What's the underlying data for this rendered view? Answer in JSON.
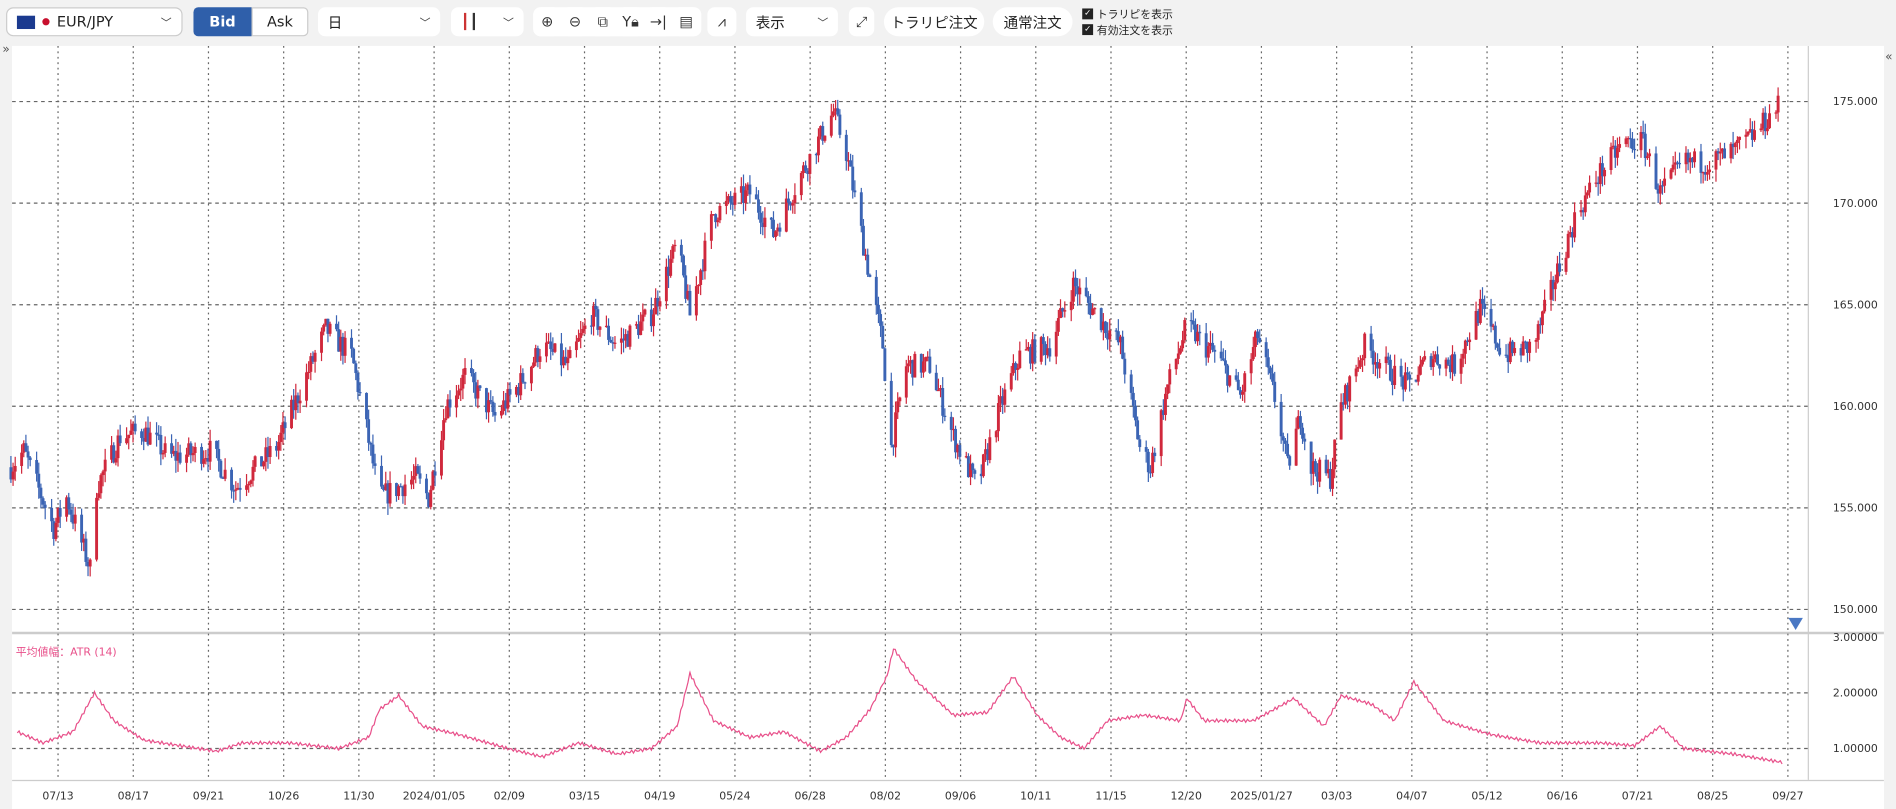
{
  "toolbar": {
    "symbol": "EUR/JPY",
    "bid_label": "Bid",
    "ask_label": "Ask",
    "period": "日",
    "display_label": "表示",
    "trarip_order": "トラリピ注文",
    "normal_order": "通常注文",
    "show_trarip": "トラリピを表示",
    "show_active_orders": "有効注文を表示",
    "show_trarip_checked": true,
    "show_active_orders_checked": true,
    "icons": [
      "zoom-in-icon",
      "zoom-out-icon",
      "fit-icon",
      "y-lock-icon",
      "jump-end-icon",
      "document-icon"
    ]
  },
  "colors": {
    "up": "#d0283c",
    "down": "#3b64b4",
    "atr": "#e8508a",
    "bid": "#2f5faa"
  },
  "chart_data": [
    {
      "type": "candlestick",
      "symbol": "EUR/JPY",
      "timeframe": "日",
      "y_ticks": [
        "150.000",
        "155.000",
        "160.000",
        "165.000",
        "170.000",
        "175.000"
      ],
      "ylim": [
        149.3,
        177.8
      ],
      "x_ticks": [
        "07/13",
        "08/17",
        "09/21",
        "10/26",
        "11/30",
        "2024/01/05",
        "02/09",
        "03/15",
        "04/19",
        "05/24",
        "06/28",
        "08/02",
        "09/06",
        "10/11",
        "11/15",
        "12/20",
        "2025/01/27",
        "03/03",
        "04/07",
        "05/12",
        "06/16",
        "07/21",
        "08/25",
        "09/27"
      ],
      "approx_close": [
        [
          "2023-06-21",
          157
        ],
        [
          "2023-06-27",
          157.8
        ],
        [
          "2023-07-11",
          154
        ],
        [
          "2023-07-17",
          155.5
        ],
        [
          "2023-07-28",
          152
        ],
        [
          "2023-07-31",
          156
        ],
        [
          "2023-08-11",
          158.5
        ],
        [
          "2023-08-22",
          158.8
        ],
        [
          "2023-09-03",
          157.5
        ],
        [
          "2023-09-22",
          157.8
        ],
        [
          "2023-10-04",
          156
        ],
        [
          "2023-10-23",
          158
        ],
        [
          "2023-11-04",
          161
        ],
        [
          "2023-11-15",
          163.8
        ],
        [
          "2023-11-27",
          162.5
        ],
        [
          "2023-12-02",
          160
        ],
        [
          "2023-12-10",
          155.5
        ],
        [
          "2023-12-19",
          156
        ],
        [
          "2023-12-27",
          156.5
        ],
        [
          "2024-01-02",
          155.5
        ],
        [
          "2024-01-10",
          160
        ],
        [
          "2024-01-19",
          161.5
        ],
        [
          "2024-02-02",
          159.5
        ],
        [
          "2024-02-13",
          161
        ],
        [
          "2024-02-24",
          163
        ],
        [
          "2024-03-07",
          162
        ],
        [
          "2024-03-18",
          164.5
        ],
        [
          "2024-03-30",
          163
        ],
        [
          "2024-04-15",
          164.5
        ],
        [
          "2024-04-27",
          168
        ],
        [
          "2024-05-03",
          164.5
        ],
        [
          "2024-05-14",
          169.5
        ],
        [
          "2024-05-31",
          170.5
        ],
        [
          "2024-06-11",
          168.5
        ],
        [
          "2024-06-22",
          171
        ],
        [
          "2024-07-09",
          174.5
        ],
        [
          "2024-07-15",
          172.5
        ],
        [
          "2024-07-23",
          168
        ],
        [
          "2024-08-01",
          163
        ],
        [
          "2024-08-05",
          158
        ],
        [
          "2024-08-12",
          162
        ],
        [
          "2024-08-23",
          162
        ],
        [
          "2024-09-03",
          158.5
        ],
        [
          "2024-09-14",
          156
        ],
        [
          "2024-09-25",
          160
        ],
        [
          "2024-10-04",
          162.5
        ],
        [
          "2024-10-18",
          163
        ],
        [
          "2024-10-29",
          166
        ],
        [
          "2024-11-09",
          164.5
        ],
        [
          "2024-11-20",
          163
        ],
        [
          "2024-11-29",
          158
        ],
        [
          "2024-12-04",
          157
        ],
        [
          "2024-12-12",
          161
        ],
        [
          "2024-12-21",
          164
        ],
        [
          "2024-12-29",
          163
        ],
        [
          "2025-01-04",
          162.5
        ],
        [
          "2025-01-15",
          160.5
        ],
        [
          "2025-01-23",
          163.5
        ],
        [
          "2025-02-01",
          160
        ],
        [
          "2025-02-06",
          157
        ],
        [
          "2025-02-12",
          159.5
        ],
        [
          "2025-02-17",
          157
        ],
        [
          "2025-02-26",
          156.5
        ],
        [
          "2025-03-03",
          160
        ],
        [
          "2025-03-14",
          163
        ],
        [
          "2025-03-23",
          162
        ],
        [
          "2025-04-03",
          161
        ],
        [
          "2025-04-14",
          162.5
        ],
        [
          "2025-04-25",
          162
        ],
        [
          "2025-05-07",
          164.8
        ],
        [
          "2025-05-18",
          162.5
        ],
        [
          "2025-06-01",
          163
        ],
        [
          "2025-06-10",
          166
        ],
        [
          "2025-06-21",
          169.5
        ],
        [
          "2025-07-02",
          171.5
        ],
        [
          "2025-07-13",
          173
        ],
        [
          "2025-07-22",
          173
        ],
        [
          "2025-07-30",
          170.5
        ],
        [
          "2025-08-10",
          172
        ],
        [
          "2025-08-22",
          172
        ],
        [
          "2025-09-02",
          172.5
        ],
        [
          "2025-09-13",
          173.5
        ],
        [
          "2025-09-23",
          174.8
        ]
      ]
    },
    {
      "type": "line",
      "title": "平均値幅：ATR (14)",
      "y_ticks": [
        "1.00000",
        "2.00000",
        "3.00000"
      ],
      "ylim": [
        0.45,
        3.0
      ],
      "values": [
        [
          "2023-06-24",
          1.3
        ],
        [
          "2023-07-06",
          1.1
        ],
        [
          "2023-07-20",
          1.3
        ],
        [
          "2023-07-30",
          2.0
        ],
        [
          "2023-08-08",
          1.5
        ],
        [
          "2023-08-22",
          1.15
        ],
        [
          "2023-09-08",
          1.05
        ],
        [
          "2023-09-25",
          0.95
        ],
        [
          "2023-10-07",
          1.1
        ],
        [
          "2023-10-29",
          1.1
        ],
        [
          "2023-11-21",
          1.0
        ],
        [
          "2023-12-05",
          1.2
        ],
        [
          "2023-12-10",
          1.7
        ],
        [
          "2023-12-19",
          1.95
        ],
        [
          "2023-12-30",
          1.4
        ],
        [
          "2024-01-16",
          1.25
        ],
        [
          "2024-02-08",
          1.0
        ],
        [
          "2024-02-24",
          0.85
        ],
        [
          "2024-03-12",
          1.1
        ],
        [
          "2024-03-30",
          0.9
        ],
        [
          "2024-04-15",
          1.0
        ],
        [
          "2024-04-27",
          1.4
        ],
        [
          "2024-05-03",
          2.35
        ],
        [
          "2024-05-14",
          1.5
        ],
        [
          "2024-05-31",
          1.2
        ],
        [
          "2024-06-16",
          1.3
        ],
        [
          "2024-07-03",
          0.95
        ],
        [
          "2024-07-15",
          1.2
        ],
        [
          "2024-07-26",
          1.7
        ],
        [
          "2024-08-03",
          2.3
        ],
        [
          "2024-08-06",
          2.8
        ],
        [
          "2024-08-17",
          2.2
        ],
        [
          "2024-09-03",
          1.6
        ],
        [
          "2024-09-19",
          1.65
        ],
        [
          "2024-10-01",
          2.3
        ],
        [
          "2024-10-12",
          1.6
        ],
        [
          "2024-10-23",
          1.2
        ],
        [
          "2024-11-03",
          1.0
        ],
        [
          "2024-11-14",
          1.5
        ],
        [
          "2024-12-01",
          1.6
        ],
        [
          "2024-12-18",
          1.5
        ],
        [
          "2024-12-21",
          1.9
        ],
        [
          "2024-12-29",
          1.5
        ],
        [
          "2025-01-21",
          1.5
        ],
        [
          "2025-02-09",
          1.9
        ],
        [
          "2025-02-23",
          1.4
        ],
        [
          "2025-03-03",
          1.95
        ],
        [
          "2025-03-17",
          1.8
        ],
        [
          "2025-03-28",
          1.5
        ],
        [
          "2025-04-06",
          2.2
        ],
        [
          "2025-04-20",
          1.5
        ],
        [
          "2025-05-12",
          1.25
        ],
        [
          "2025-06-04",
          1.1
        ],
        [
          "2025-07-02",
          1.1
        ],
        [
          "2025-07-18",
          1.05
        ],
        [
          "2025-07-30",
          1.4
        ],
        [
          "2025-08-10",
          1.0
        ],
        [
          "2025-09-02",
          0.9
        ],
        [
          "2025-09-25",
          0.75
        ]
      ]
    }
  ]
}
